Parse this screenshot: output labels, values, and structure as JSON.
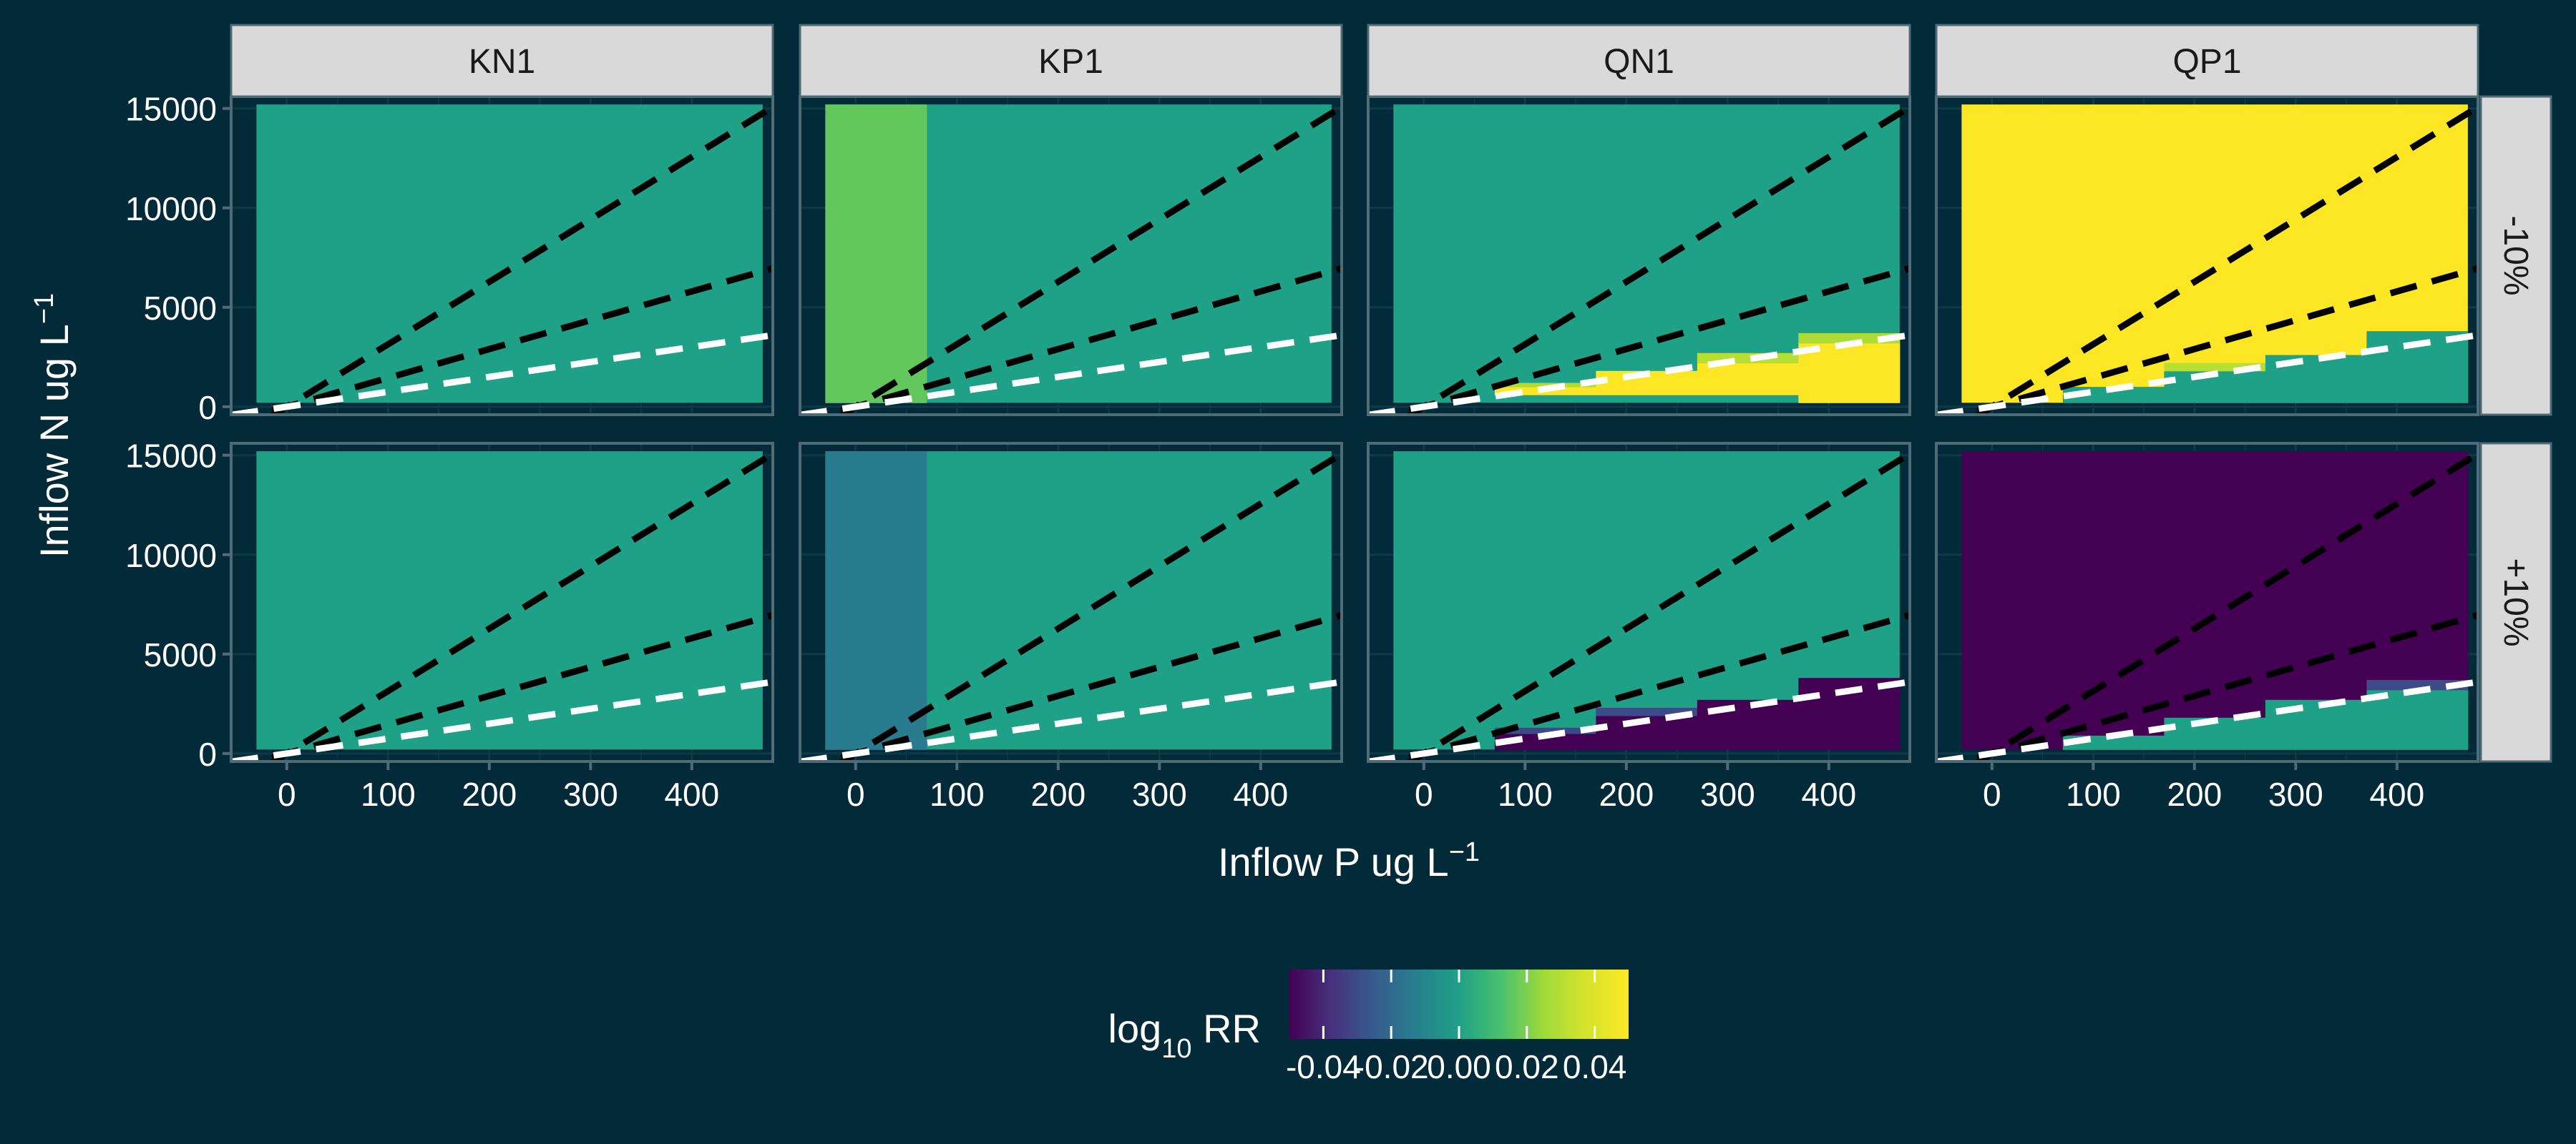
{
  "colors": {
    "background": "#022a38",
    "strip_fill": "#d9d9d9",
    "strip_text": "#1a1a1a",
    "panel_border": "#4f6b75",
    "grid": "#0e3a48",
    "text": "#ffffff",
    "ratio_line_black": "#000000",
    "ratio_line_white": "#ffffff"
  },
  "chart_data": {
    "type": "heatmap",
    "facet_columns": [
      "KN1",
      "KP1",
      "QN1",
      "QP1"
    ],
    "facet_rows": [
      "-10%",
      "+10%"
    ],
    "xlabel_main": "Inflow P ug L",
    "xlabel_sup": "−1",
    "ylabel_main": "Inflow N ug L",
    "ylabel_sup": "−1",
    "xlim": [
      -55,
      480
    ],
    "ylim": [
      -400,
      15600
    ],
    "x_ticks": [
      0,
      100,
      200,
      300,
      400
    ],
    "x_tick_labels": [
      "0",
      "100",
      "200",
      "300",
      "400"
    ],
    "y_ticks": [
      0,
      5000,
      10000,
      15000
    ],
    "y_tick_labels": [
      "0",
      "5000",
      "10000",
      "15000"
    ],
    "x_bins": [
      [
        -30,
        70
      ],
      [
        70,
        170
      ],
      [
        170,
        270
      ],
      [
        270,
        370
      ],
      [
        370,
        470
      ]
    ],
    "y_edges": [
      200,
      600,
      1000,
      1400,
      1800,
      2200,
      2600,
      3000,
      3400,
      3800,
      15200
    ],
    "background_value": 0.0,
    "ratio_lines": [
      {
        "slope": 31.4,
        "color": "black"
      },
      {
        "slope": 14.5,
        "color": "black"
      },
      {
        "slope": 7.5,
        "color": "white"
      }
    ],
    "panels": [
      {
        "col": "KN1",
        "row": "-10%",
        "fill": 0.0,
        "cells": []
      },
      {
        "col": "KP1",
        "row": "-10%",
        "fill": 0.0,
        "cells": [
          {
            "x": [
              -30,
              70
            ],
            "y": [
              200,
              15200
            ],
            "value": 0.016
          }
        ]
      },
      {
        "col": "QN1",
        "row": "-10%",
        "fill": 0.0,
        "cells": [
          {
            "x": [
              70,
              170
            ],
            "y": [
              600,
              1000
            ],
            "value": 0.05
          },
          {
            "x": [
              70,
              170
            ],
            "y": [
              1000,
              1200
            ],
            "value": 0.028
          },
          {
            "x": [
              170,
              270
            ],
            "y": [
              600,
              1800
            ],
            "value": 0.05
          },
          {
            "x": [
              270,
              370
            ],
            "y": [
              600,
              2200
            ],
            "value": 0.05
          },
          {
            "x": [
              270,
              370
            ],
            "y": [
              2200,
              2700
            ],
            "value": 0.03
          },
          {
            "x": [
              370,
              470
            ],
            "y": [
              200,
              3200
            ],
            "value": 0.05
          },
          {
            "x": [
              370,
              470
            ],
            "y": [
              3200,
              3700
            ],
            "value": 0.028
          }
        ]
      },
      {
        "col": "QP1",
        "row": "-10%",
        "fill": 0.05,
        "cells": [
          {
            "x": [
              70,
              170
            ],
            "y": [
              200,
              1000
            ],
            "value": 0.0
          },
          {
            "x": [
              170,
              270
            ],
            "y": [
              200,
              1800
            ],
            "value": 0.0
          },
          {
            "x": [
              170,
              270
            ],
            "y": [
              1800,
              2200
            ],
            "value": 0.03
          },
          {
            "x": [
              270,
              370
            ],
            "y": [
              200,
              2600
            ],
            "value": 0.0
          },
          {
            "x": [
              370,
              470
            ],
            "y": [
              200,
              3800
            ],
            "value": 0.0
          }
        ]
      },
      {
        "col": "KN1",
        "row": "+10%",
        "fill": 0.0,
        "cells": []
      },
      {
        "col": "KP1",
        "row": "+10%",
        "fill": 0.0,
        "cells": [
          {
            "x": [
              -30,
              70
            ],
            "y": [
              200,
              15200
            ],
            "value": -0.014
          }
        ]
      },
      {
        "col": "QN1",
        "row": "+10%",
        "fill": 0.0,
        "cells": [
          {
            "x": [
              70,
              170
            ],
            "y": [
              200,
              1000
            ],
            "value": -0.05
          },
          {
            "x": [
              70,
              170
            ],
            "y": [
              1000,
              1300
            ],
            "value": -0.03
          },
          {
            "x": [
              170,
              270
            ],
            "y": [
              200,
              1900
            ],
            "value": -0.05
          },
          {
            "x": [
              170,
              270
            ],
            "y": [
              1900,
              2300
            ],
            "value": -0.03
          },
          {
            "x": [
              270,
              370
            ],
            "y": [
              200,
              2700
            ],
            "value": -0.05
          },
          {
            "x": [
              370,
              470
            ],
            "y": [
              200,
              3800
            ],
            "value": -0.05
          }
        ]
      },
      {
        "col": "QP1",
        "row": "+10%",
        "fill": -0.05,
        "cells": [
          {
            "x": [
              70,
              170
            ],
            "y": [
              200,
              900
            ],
            "value": 0.0
          },
          {
            "x": [
              170,
              270
            ],
            "y": [
              200,
              1800
            ],
            "value": 0.0
          },
          {
            "x": [
              270,
              370
            ],
            "y": [
              200,
              2700
            ],
            "value": 0.0
          },
          {
            "x": [
              370,
              470
            ],
            "y": [
              200,
              3200
            ],
            "value": 0.0
          },
          {
            "x": [
              370,
              470
            ],
            "y": [
              3200,
              3700
            ],
            "value": -0.03
          }
        ]
      }
    ],
    "legend": {
      "title_main": "log",
      "title_sub": "10",
      "title_rest": " RR",
      "position": "bottom",
      "range": [
        -0.05,
        0.05
      ],
      "ticks": [
        -0.04,
        -0.02,
        0.0,
        0.02,
        0.04
      ],
      "tick_labels": [
        "-0.04",
        "-0.02",
        "0.00",
        "0.02",
        "0.04"
      ]
    }
  }
}
